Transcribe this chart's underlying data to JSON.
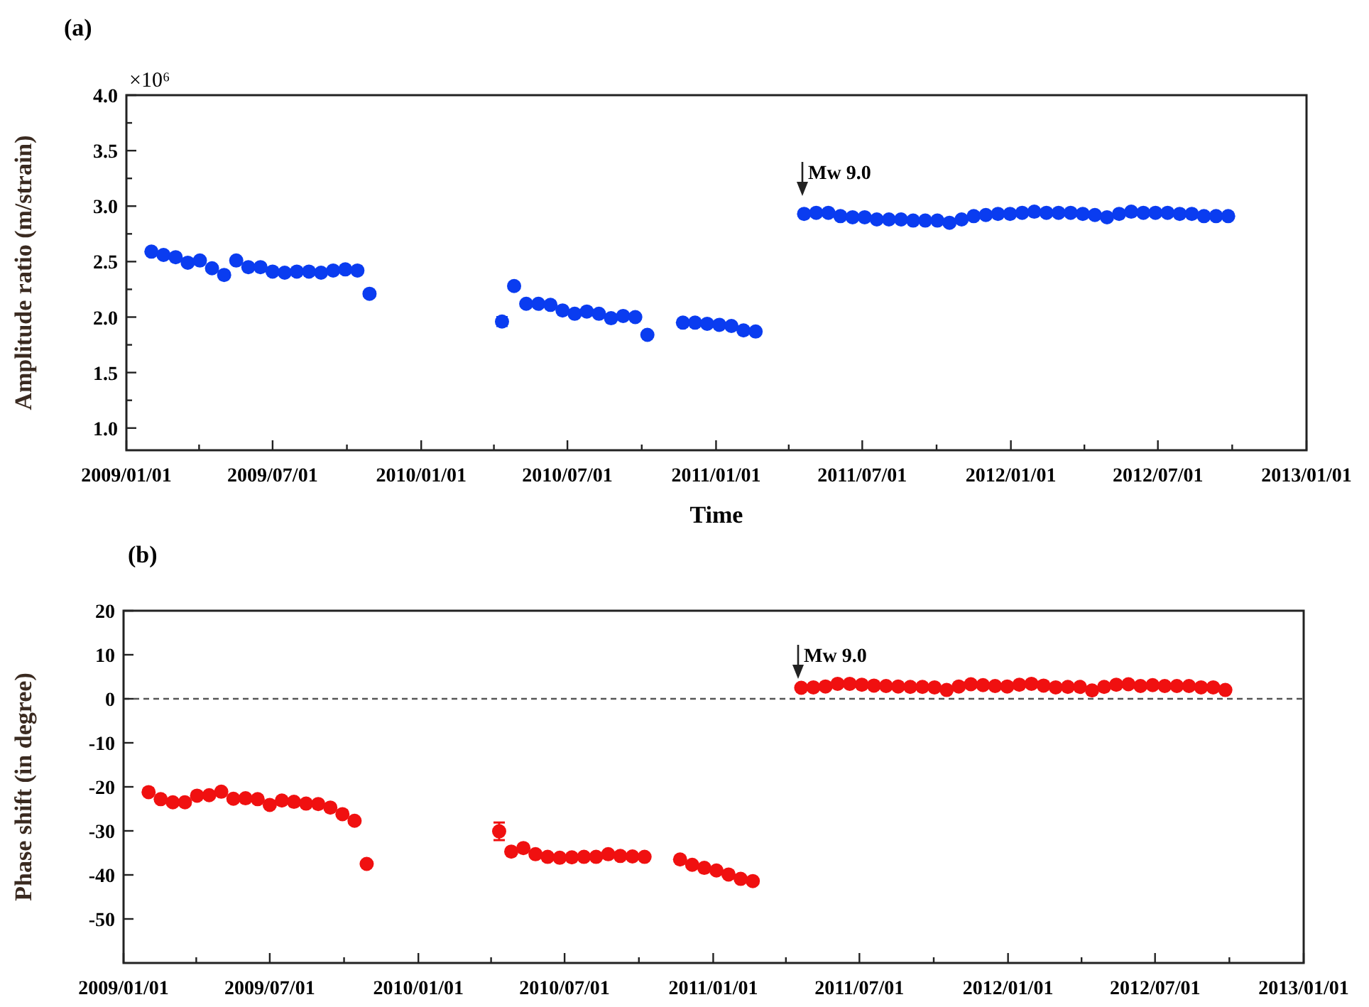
{
  "chart_data": [
    {
      "type": "scatter",
      "title": "(a)",
      "xlabel": "Time",
      "ylabel": "Amplitude ratio (m/strain)",
      "marker": "circle",
      "annotations": [
        "×10⁶",
        "Mw 9.0"
      ],
      "xlim": [
        "2009-01-01",
        "2013-01-01"
      ],
      "xticks": [
        {
          "value": "2009-01-01",
          "label": "2009/01/01"
        },
        {
          "value": "2009-04-01",
          "label": null
        },
        {
          "value": "2009-07-01",
          "label": "2009/07/01"
        },
        {
          "value": "2009-10-01",
          "label": null
        },
        {
          "value": "2010-01-01",
          "label": "2010/01/01"
        },
        {
          "value": "2010-04-01",
          "label": null
        },
        {
          "value": "2010-07-01",
          "label": "2010/07/01"
        },
        {
          "value": "2010-10-01",
          "label": null
        },
        {
          "value": "2011-01-01",
          "label": "2011/01/01"
        },
        {
          "value": "2011-04-01",
          "label": null
        },
        {
          "value": "2011-07-01",
          "label": "2011/07/01"
        },
        {
          "value": "2011-10-01",
          "label": null
        },
        {
          "value": "2012-01-01",
          "label": "2012/01/01"
        },
        {
          "value": "2012-04-01",
          "label": null
        },
        {
          "value": "2012-07-01",
          "label": "2012/07/01"
        },
        {
          "value": "2012-10-01",
          "label": null
        },
        {
          "value": "2013-01-01",
          "label": "2013/01/01"
        }
      ],
      "ylim": [
        0.8,
        4.0
      ],
      "yticks": [
        {
          "value": 1,
          "label": "1.0"
        },
        {
          "value": 1.25,
          "label": null
        },
        {
          "value": 1.5,
          "label": "1.5"
        },
        {
          "value": 1.75,
          "label": null
        },
        {
          "value": 2,
          "label": "2.0"
        },
        {
          "value": 2.25,
          "label": null
        },
        {
          "value": 2.5,
          "label": "2.5"
        },
        {
          "value": 2.75,
          "label": null
        },
        {
          "value": 3,
          "label": "3.0"
        },
        {
          "value": 3.25,
          "label": null
        },
        {
          "value": 3.5,
          "label": "3.5"
        },
        {
          "value": 3.75,
          "label": null
        },
        {
          "value": 4,
          "label": "4.0"
        }
      ],
      "x": [
        "2009-02-01",
        "2009-02-16",
        "2009-03-03",
        "2009-03-18",
        "2009-04-02",
        "2009-04-17",
        "2009-05-02",
        "2009-05-17",
        "2009-06-01",
        "2009-06-16",
        "2009-07-01",
        "2009-07-16",
        "2009-07-31",
        "2009-08-15",
        "2009-08-30",
        "2009-09-14",
        "2009-09-29",
        "2009-10-14",
        "2009-10-29",
        "2010-04-11",
        "2010-04-26",
        "2010-05-11",
        "2010-05-26",
        "2010-06-10",
        "2010-06-25",
        "2010-07-10",
        "2010-07-25",
        "2010-08-09",
        "2010-08-24",
        "2010-09-08",
        "2010-09-23",
        "2010-10-08",
        "2010-11-21",
        "2010-12-06",
        "2010-12-21",
        "2011-01-05",
        "2011-01-20",
        "2011-02-04",
        "2011-02-19",
        "2011-04-20",
        "2011-05-05",
        "2011-05-20",
        "2011-06-04",
        "2011-06-19",
        "2011-07-04",
        "2011-07-19",
        "2011-08-03",
        "2011-08-18",
        "2011-09-02",
        "2011-09-17",
        "2011-10-02",
        "2011-10-17",
        "2011-11-01",
        "2011-11-16",
        "2011-12-01",
        "2011-12-16",
        "2011-12-31",
        "2012-01-15",
        "2012-01-30",
        "2012-02-14",
        "2012-02-29",
        "2012-03-15",
        "2012-03-30",
        "2012-04-14",
        "2012-04-29",
        "2012-05-14",
        "2012-05-29",
        "2012-06-13",
        "2012-06-28",
        "2012-07-13",
        "2012-07-28",
        "2012-08-12",
        "2012-08-27",
        "2012-09-11",
        "2012-09-26"
      ],
      "series": [
        {
          "color": "#0a3cf0",
          "values": [
            2.59,
            2.56,
            2.54,
            2.49,
            2.51,
            2.44,
            2.38,
            2.51,
            2.45,
            2.45,
            2.41,
            2.4,
            2.41,
            2.41,
            2.4,
            2.42,
            2.43,
            2.42,
            2.21,
            1.96,
            2.28,
            2.12,
            2.12,
            2.11,
            2.06,
            2.03,
            2.05,
            2.03,
            1.99,
            2.01,
            2.0,
            1.84,
            1.95,
            1.95,
            1.94,
            1.93,
            1.92,
            1.88,
            1.87,
            2.93,
            2.94,
            2.94,
            2.91,
            2.9,
            2.9,
            2.88,
            2.88,
            2.88,
            2.87,
            2.87,
            2.87,
            2.85,
            2.88,
            2.91,
            2.92,
            2.93,
            2.93,
            2.94,
            2.95,
            2.94,
            2.94,
            2.94,
            2.93,
            2.92,
            2.9,
            2.93,
            2.95,
            2.94,
            2.94,
            2.94,
            2.93,
            2.93,
            2.91,
            2.91,
            2.91
          ],
          "errors": [
            null,
            null,
            null,
            null,
            null,
            0.02,
            null,
            null,
            null,
            null,
            null,
            null,
            null,
            null,
            null,
            null,
            null,
            null,
            null,
            0.04,
            0.03,
            null,
            null,
            null,
            null,
            null,
            null,
            null,
            null,
            null,
            null,
            null,
            null,
            null,
            null,
            null,
            null,
            null,
            null,
            null,
            null,
            null,
            null,
            null,
            null,
            null,
            null,
            null,
            null,
            null,
            null,
            null,
            null,
            null,
            null,
            null,
            null,
            null,
            null,
            null,
            null,
            null,
            null,
            null,
            null,
            null,
            null,
            null,
            null,
            null,
            null,
            null,
            null,
            null,
            null
          ]
        }
      ]
    },
    {
      "type": "scatter",
      "title": "(b)",
      "ylabel": "Phase shift (in degree)",
      "marker": "circle",
      "annotations": [
        "Mw 9.0"
      ],
      "ref_lines": [
        {
          "axis": "y",
          "value": 0,
          "line_style": "dashed",
          "color": "#555555"
        }
      ],
      "xlim": [
        "2009-01-01",
        "2013-01-01"
      ],
      "xticks": [
        {
          "value": "2009-01-01",
          "label": "2009/01/01"
        },
        {
          "value": "2009-04-01",
          "label": null
        },
        {
          "value": "2009-07-01",
          "label": "2009/07/01"
        },
        {
          "value": "2009-10-01",
          "label": null
        },
        {
          "value": "2010-01-01",
          "label": "2010/01/01"
        },
        {
          "value": "2010-04-01",
          "label": null
        },
        {
          "value": "2010-07-01",
          "label": "2010/07/01"
        },
        {
          "value": "2010-10-01",
          "label": null
        },
        {
          "value": "2011-01-01",
          "label": "2011/01/01"
        },
        {
          "value": "2011-04-01",
          "label": null
        },
        {
          "value": "2011-07-01",
          "label": "2011/07/01"
        },
        {
          "value": "2011-10-01",
          "label": null
        },
        {
          "value": "2012-01-01",
          "label": "2012/01/01"
        },
        {
          "value": "2012-04-01",
          "label": null
        },
        {
          "value": "2012-07-01",
          "label": "2012/07/01"
        },
        {
          "value": "2012-10-01",
          "label": null
        },
        {
          "value": "2013-01-01",
          "label": "2013/01/01"
        }
      ],
      "ylim": [
        -60,
        20
      ],
      "yticks": [
        -50,
        -40,
        -30,
        -20,
        -10,
        0,
        10,
        20
      ],
      "x": [
        "2009-02-01",
        "2009-02-16",
        "2009-03-03",
        "2009-03-18",
        "2009-04-02",
        "2009-04-17",
        "2009-05-02",
        "2009-05-17",
        "2009-06-01",
        "2009-06-16",
        "2009-07-01",
        "2009-07-16",
        "2009-07-31",
        "2009-08-15",
        "2009-08-30",
        "2009-09-14",
        "2009-09-29",
        "2009-10-14",
        "2009-10-29",
        "2010-04-11",
        "2010-04-26",
        "2010-05-11",
        "2010-05-26",
        "2010-06-10",
        "2010-06-25",
        "2010-07-10",
        "2010-07-25",
        "2010-08-09",
        "2010-08-24",
        "2010-09-08",
        "2010-09-23",
        "2010-10-08",
        "2010-11-21",
        "2010-12-06",
        "2010-12-21",
        "2011-01-05",
        "2011-01-20",
        "2011-02-04",
        "2011-02-19",
        "2011-04-20",
        "2011-05-05",
        "2011-05-20",
        "2011-06-04",
        "2011-06-19",
        "2011-07-04",
        "2011-07-19",
        "2011-08-03",
        "2011-08-18",
        "2011-09-02",
        "2011-09-17",
        "2011-10-02",
        "2011-10-17",
        "2011-11-01",
        "2011-11-16",
        "2011-12-01",
        "2011-12-16",
        "2011-12-31",
        "2012-01-15",
        "2012-01-30",
        "2012-02-14",
        "2012-02-29",
        "2012-03-15",
        "2012-03-30",
        "2012-04-14",
        "2012-04-29",
        "2012-05-14",
        "2012-05-29",
        "2012-06-13",
        "2012-06-28",
        "2012-07-13",
        "2012-07-28",
        "2012-08-12",
        "2012-08-27",
        "2012-09-11",
        "2012-09-26"
      ],
      "series": [
        {
          "color": "#f01010",
          "values": [
            -21.2,
            -22.8,
            -23.5,
            -23.5,
            -22.0,
            -21.9,
            -21.1,
            -22.7,
            -22.6,
            -22.8,
            -24.1,
            -23.1,
            -23.4,
            -23.8,
            -23.9,
            -24.7,
            -26.2,
            -27.7,
            -37.5,
            -30.1,
            -34.7,
            -33.9,
            -35.3,
            -35.9,
            -36.1,
            -36.0,
            -35.9,
            -35.9,
            -35.3,
            -35.7,
            -35.8,
            -35.9,
            -36.5,
            -37.7,
            -38.4,
            -39.0,
            -39.9,
            -40.9,
            -41.4,
            2.5,
            2.6,
            2.8,
            3.4,
            3.4,
            3.2,
            3.0,
            2.9,
            2.8,
            2.7,
            2.7,
            2.6,
            2.0,
            2.8,
            3.3,
            3.1,
            2.9,
            2.8,
            3.2,
            3.4,
            3.0,
            2.6,
            2.7,
            2.7,
            1.9,
            2.7,
            3.2,
            3.3,
            2.9,
            3.1,
            2.9,
            2.9,
            2.9,
            2.6,
            2.6,
            2.0
          ],
          "errors": [
            null,
            null,
            null,
            null,
            null,
            null,
            null,
            null,
            null,
            null,
            null,
            null,
            null,
            null,
            null,
            null,
            null,
            null,
            null,
            2,
            null,
            null,
            null,
            null,
            null,
            null,
            null,
            null,
            null,
            null,
            null,
            null,
            null,
            null,
            null,
            null,
            null,
            null,
            null,
            null,
            null,
            null,
            null,
            null,
            null,
            null,
            null,
            null,
            null,
            null,
            null,
            null,
            null,
            null,
            null,
            null,
            null,
            null,
            null,
            null,
            null,
            null,
            null,
            null,
            null,
            null,
            null,
            null,
            null,
            null,
            null,
            null,
            null,
            null,
            null
          ]
        }
      ]
    }
  ]
}
